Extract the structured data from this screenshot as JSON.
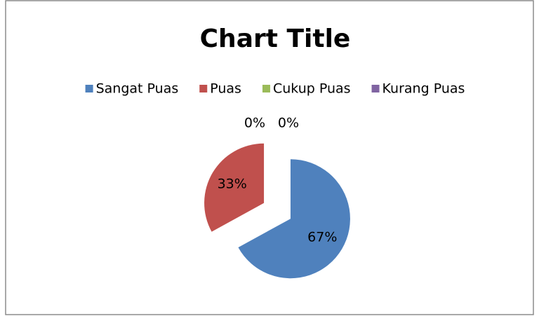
{
  "chart_data": {
    "type": "pie",
    "title": "Chart Title",
    "categories": [
      "Sangat Puas",
      "Puas",
      "Cukup Puas",
      "Kurang Puas"
    ],
    "values": [
      67,
      33,
      0,
      0
    ],
    "value_labels": [
      "67%",
      "33%",
      "0%",
      "0%"
    ],
    "colors": [
      "#4f81bd",
      "#c0504d",
      "#9bbb59",
      "#8064a2"
    ],
    "legend": "top",
    "explode": true
  }
}
